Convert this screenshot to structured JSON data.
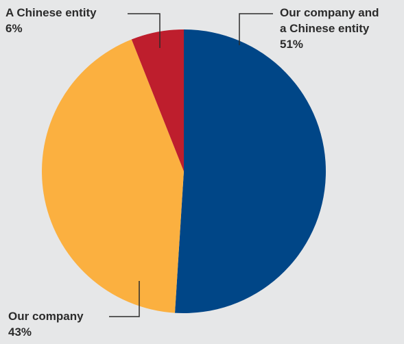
{
  "chart_data": {
    "type": "pie",
    "start_angle_deg": 0,
    "direction": "clockwise",
    "slices": [
      {
        "label_lines": [
          "Our company and",
          "a Chinese entity"
        ],
        "value": 51,
        "value_label": "51%",
        "color": "#004687"
      },
      {
        "label_lines": [
          "Our company"
        ],
        "value": 43,
        "value_label": "43%",
        "color": "#fbb040"
      },
      {
        "label_lines": [
          "A Chinese entity"
        ],
        "value": 6,
        "value_label": "6%",
        "color": "#be1e2d"
      }
    ]
  }
}
